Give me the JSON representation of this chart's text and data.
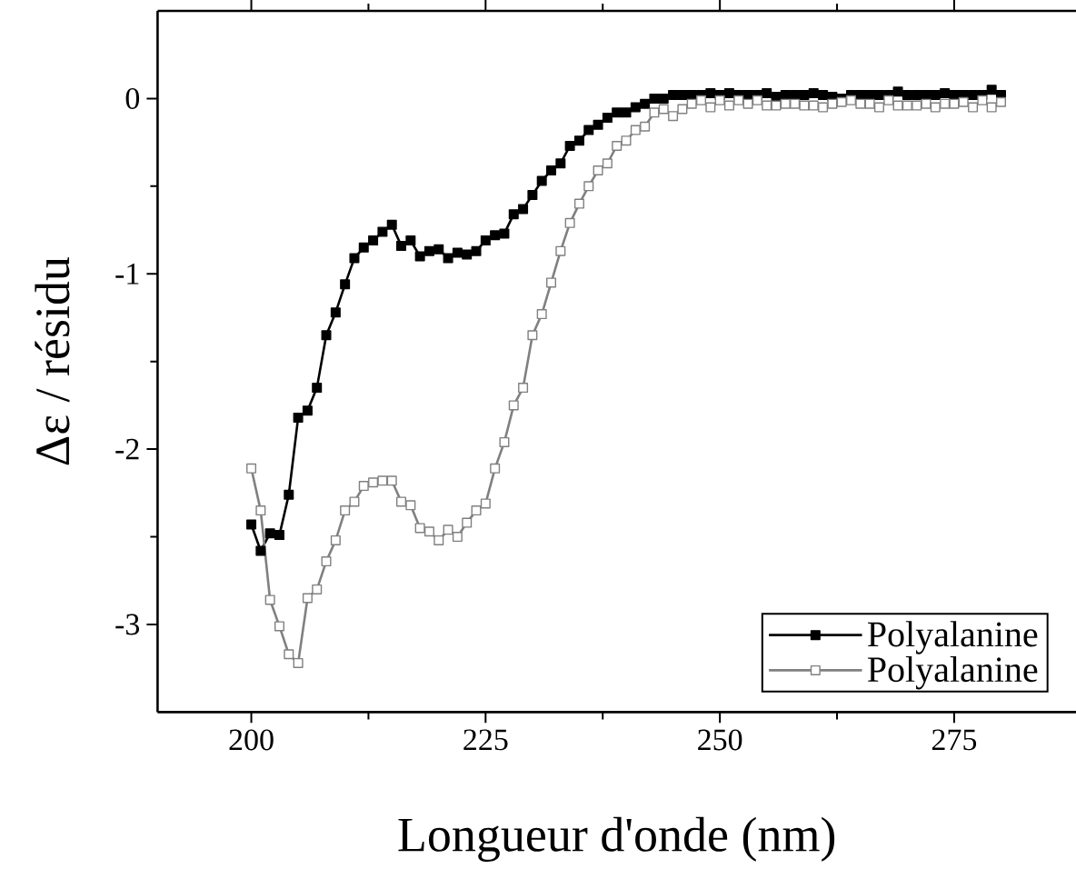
{
  "chart_data": {
    "type": "line",
    "xlabel": "Longueur d'onde (nm)",
    "ylabel": "Δε / résidu",
    "x": [
      200,
      201,
      202,
      203,
      204,
      205,
      206,
      207,
      208,
      209,
      210,
      211,
      212,
      213,
      214,
      215,
      216,
      217,
      218,
      219,
      220,
      221,
      222,
      223,
      224,
      225,
      226,
      227,
      228,
      229,
      230,
      231,
      232,
      233,
      234,
      235,
      236,
      237,
      238,
      239,
      240,
      241,
      242,
      243,
      244,
      245,
      246,
      247,
      248,
      249,
      250,
      251,
      252,
      253,
      254,
      255,
      256,
      257,
      258,
      259,
      260,
      261,
      262,
      263,
      264,
      265,
      266,
      267,
      268,
      269,
      270,
      271,
      272,
      273,
      274,
      275,
      276,
      277,
      278,
      279,
      280
    ],
    "series": [
      {
        "name": "Polyalanine",
        "color": "#000000",
        "values": [
          -2.43,
          -2.58,
          -2.48,
          -2.49,
          -2.26,
          -1.82,
          -1.78,
          -1.65,
          -1.35,
          -1.22,
          -1.06,
          -0.91,
          -0.85,
          -0.81,
          -0.76,
          -0.72,
          -0.84,
          -0.81,
          -0.9,
          -0.87,
          -0.86,
          -0.91,
          -0.88,
          -0.89,
          -0.87,
          -0.81,
          -0.78,
          -0.77,
          -0.66,
          -0.63,
          -0.55,
          -0.47,
          -0.41,
          -0.37,
          -0.27,
          -0.24,
          -0.18,
          -0.15,
          -0.11,
          -0.08,
          -0.08,
          -0.05,
          -0.03,
          0.0,
          0.0,
          0.02,
          0.02,
          0.02,
          0.02,
          0.03,
          0.02,
          0.03,
          0.02,
          0.02,
          0.02,
          0.03,
          0.01,
          0.02,
          0.02,
          0.02,
          0.03,
          0.02,
          0.01,
          0.0,
          0.02,
          0.02,
          0.02,
          0.02,
          0.02,
          0.04,
          0.02,
          0.02,
          0.02,
          0.02,
          0.03,
          0.02,
          0.02,
          0.02,
          0.02,
          0.05,
          0.02
        ]
      },
      {
        "name": "Polyalanine",
        "color": "#808080",
        "values": [
          -2.11,
          -2.35,
          -2.86,
          -3.01,
          -3.17,
          -3.22,
          -2.85,
          -2.8,
          -2.64,
          -2.52,
          -2.35,
          -2.3,
          -2.21,
          -2.19,
          -2.18,
          -2.18,
          -2.3,
          -2.32,
          -2.45,
          -2.47,
          -2.52,
          -2.46,
          -2.5,
          -2.42,
          -2.35,
          -2.31,
          -2.11,
          -1.96,
          -1.75,
          -1.65,
          -1.35,
          -1.23,
          -1.05,
          -0.87,
          -0.71,
          -0.6,
          -0.5,
          -0.41,
          -0.37,
          -0.27,
          -0.24,
          -0.18,
          -0.16,
          -0.08,
          -0.06,
          -0.1,
          -0.06,
          -0.03,
          -0.01,
          -0.05,
          -0.01,
          -0.04,
          -0.01,
          -0.03,
          -0.01,
          -0.04,
          -0.04,
          -0.03,
          -0.03,
          -0.04,
          -0.04,
          -0.05,
          -0.03,
          -0.02,
          -0.01,
          -0.03,
          -0.03,
          -0.05,
          -0.01,
          -0.04,
          -0.04,
          -0.04,
          -0.03,
          -0.05,
          -0.03,
          -0.03,
          -0.02,
          -0.05,
          -0.01,
          -0.05,
          -0.02
        ]
      }
    ],
    "xlim": [
      190,
      288
    ],
    "xticks": [
      200,
      225,
      250,
      275
    ],
    "ylim": [
      -3.5,
      0.5
    ],
    "yticks": [
      -3,
      -2,
      -1,
      0
    ],
    "legend": "bottom right",
    "marker": "square",
    "line_style": "solid"
  }
}
